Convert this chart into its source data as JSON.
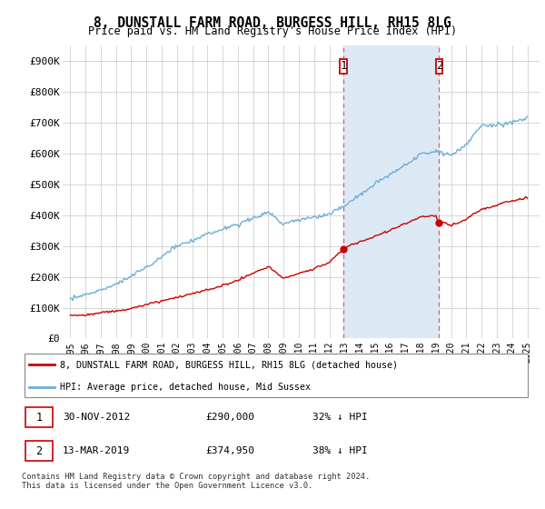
{
  "title": "8, DUNSTALL FARM ROAD, BURGESS HILL, RH15 8LG",
  "subtitle": "Price paid vs. HM Land Registry's House Price Index (HPI)",
  "ylim": [
    0,
    950000
  ],
  "yticks": [
    0,
    100000,
    200000,
    300000,
    400000,
    500000,
    600000,
    700000,
    800000,
    900000
  ],
  "ytick_labels": [
    "£0",
    "£100K",
    "£200K",
    "£300K",
    "£400K",
    "£500K",
    "£600K",
    "£700K",
    "£800K",
    "£900K"
  ],
  "hpi_color": "#6baed6",
  "price_color": "#cc0000",
  "highlight_color": "#dce9f5",
  "grid_color": "#d0d0d0",
  "background_color": "#ffffff",
  "purchase1_date": 2012.92,
  "purchase1_price": 290000,
  "purchase2_date": 2019.21,
  "purchase2_price": 374950,
  "legend_line1": "8, DUNSTALL FARM ROAD, BURGESS HILL, RH15 8LG (detached house)",
  "legend_line2": "HPI: Average price, detached house, Mid Sussex",
  "table_row1": [
    "1",
    "30-NOV-2012",
    "£290,000",
    "32% ↓ HPI"
  ],
  "table_row2": [
    "2",
    "13-MAR-2019",
    "£374,950",
    "38% ↓ HPI"
  ],
  "footnote": "Contains HM Land Registry data © Crown copyright and database right 2024.\nThis data is licensed under the Open Government Licence v3.0.",
  "xmin": 1994.5,
  "xmax": 2025.8,
  "xticks": [
    1995,
    1996,
    1997,
    1998,
    1999,
    2000,
    2001,
    2002,
    2003,
    2004,
    2005,
    2006,
    2007,
    2008,
    2009,
    2010,
    2011,
    2012,
    2013,
    2014,
    2015,
    2016,
    2017,
    2018,
    2019,
    2020,
    2021,
    2022,
    2023,
    2024,
    2025
  ]
}
